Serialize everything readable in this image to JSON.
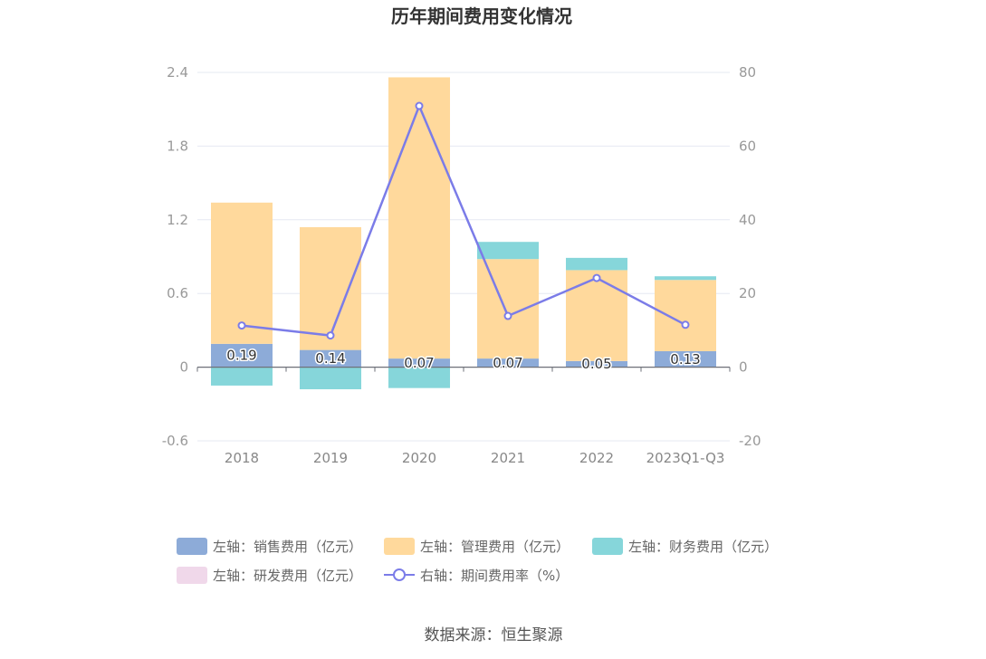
{
  "title": "历年期间费用变化情况",
  "source": "数据来源：恒生聚源",
  "colors": {
    "sales": "#8dabd8",
    "admin": "#ffd99c",
    "finance": "#86d6da",
    "rd": "#f0d8ea",
    "rate": "#7b7ce8"
  },
  "chart_data": {
    "type": "bar",
    "categories": [
      "2018",
      "2019",
      "2020",
      "2021",
      "2022",
      "2023Q1-Q3"
    ],
    "series": [
      {
        "name": "左轴：销售费用（亿元）",
        "axis": "left",
        "stack": true,
        "values": [
          0.19,
          0.14,
          0.07,
          0.07,
          0.05,
          0.13
        ]
      },
      {
        "name": "左轴：管理费用（亿元）",
        "axis": "left",
        "stack": true,
        "values": [
          1.15,
          1.0,
          2.29,
          0.81,
          0.74,
          0.58
        ]
      },
      {
        "name": "左轴：财务费用（亿元）",
        "axis": "left",
        "stack": true,
        "values": [
          -0.15,
          -0.18,
          -0.17,
          0.14,
          0.1,
          0.03
        ]
      },
      {
        "name": "左轴：研发费用（亿元）",
        "axis": "left",
        "stack": true,
        "values": [
          0,
          0,
          0,
          0,
          0,
          0
        ]
      },
      {
        "name": "右轴：期间费用率（%）",
        "axis": "right",
        "type": "line",
        "values": [
          11.3,
          8.6,
          70.9,
          13.9,
          24.2,
          11.5
        ]
      }
    ],
    "data_labels": [
      "0.19",
      "0.14",
      "0.07",
      "0.07",
      "0.05",
      "0.13"
    ],
    "y_left": {
      "ticks": [
        "-0.6",
        "0",
        "0.6",
        "1.2",
        "1.8",
        "2.4"
      ],
      "range": [
        -0.6,
        2.4
      ]
    },
    "y_right": {
      "ticks": [
        "-20",
        "0",
        "20",
        "40",
        "60",
        "80"
      ],
      "range": [
        -20,
        80
      ]
    },
    "grid": true,
    "legend_position": "bottom"
  }
}
